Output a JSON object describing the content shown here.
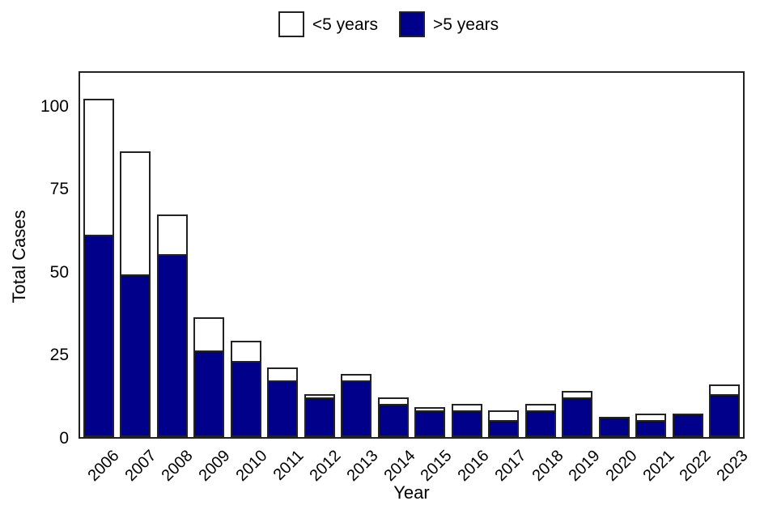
{
  "figure": {
    "ylabel": "Total Cases",
    "xlabel": "Year",
    "legend": [
      {
        "label": "<5 years",
        "color": "#FFFFFF"
      },
      {
        "label": ">5 years",
        "color": "#00008B"
      }
    ]
  },
  "chart_data": {
    "type": "bar",
    "stacked": true,
    "title": "",
    "xlabel": "Year",
    "ylabel": "Total Cases",
    "grid": false,
    "legend_position": "top-center",
    "bar_fill_colors": {
      "under5": "#FFFFFF",
      "over5": "#00008B"
    },
    "bar_border_color": "#222222",
    "categories": [
      "2006",
      "2007",
      "2008",
      "2009",
      "2010",
      "2011",
      "2012",
      "2013",
      "2014",
      "2015",
      "2016",
      "2017",
      "2018",
      "2019",
      "2020",
      "2021",
      "2022",
      "2023"
    ],
    "series": [
      {
        "name": ">5 years",
        "stack_position": "bottom",
        "color": "#00008B",
        "values": [
          61,
          49,
          55,
          26,
          23,
          17,
          12,
          17,
          10,
          8,
          8,
          5,
          8,
          12,
          6,
          5,
          7,
          13
        ]
      },
      {
        "name": "<5 years",
        "stack_position": "top",
        "color": "#FFFFFF",
        "values": [
          41,
          37,
          12,
          10,
          6,
          4,
          1,
          2,
          2,
          1,
          2,
          3,
          2,
          2,
          0,
          2,
          0,
          3
        ]
      }
    ],
    "totals": [
      102,
      86,
      67,
      36,
      29,
      21,
      13,
      19,
      12,
      9,
      10,
      8,
      10,
      14,
      6,
      7,
      7,
      16
    ],
    "yticks": [
      0,
      25,
      50,
      75,
      100
    ],
    "ylim": [
      0,
      110.7
    ]
  }
}
